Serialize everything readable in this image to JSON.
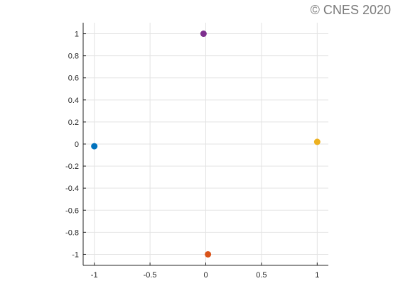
{
  "watermark": {
    "text": "© CNES 2020"
  },
  "chart_data": {
    "type": "scatter",
    "title": "",
    "xlabel": "",
    "ylabel": "",
    "xlim": [
      -1.1,
      1.1
    ],
    "ylim": [
      -1.1,
      1.1
    ],
    "x_ticks": [
      -1,
      -0.5,
      0,
      0.5,
      1
    ],
    "x_tick_labels": [
      "-1",
      "-0.5",
      "0",
      "0.5",
      "1"
    ],
    "y_ticks": [
      1,
      0.8,
      0.6,
      0.4,
      0.2,
      0,
      -0.2,
      -0.4,
      -0.6,
      -0.8,
      -1
    ],
    "y_tick_labels": [
      "1",
      "0.8",
      "0.6",
      "0.4",
      "0.2",
      "0",
      "-0.2",
      "-0.4",
      "-0.6",
      "-0.8",
      "-1"
    ],
    "grid": true,
    "points": [
      {
        "x": -1.0,
        "y": -0.02,
        "color": "#0072bd"
      },
      {
        "x": 0.02,
        "y": -1.0,
        "color": "#d95319"
      },
      {
        "x": 1.0,
        "y": 0.02,
        "color": "#edb120"
      },
      {
        "x": -0.02,
        "y": 1.0,
        "color": "#7e2f8e"
      }
    ]
  }
}
